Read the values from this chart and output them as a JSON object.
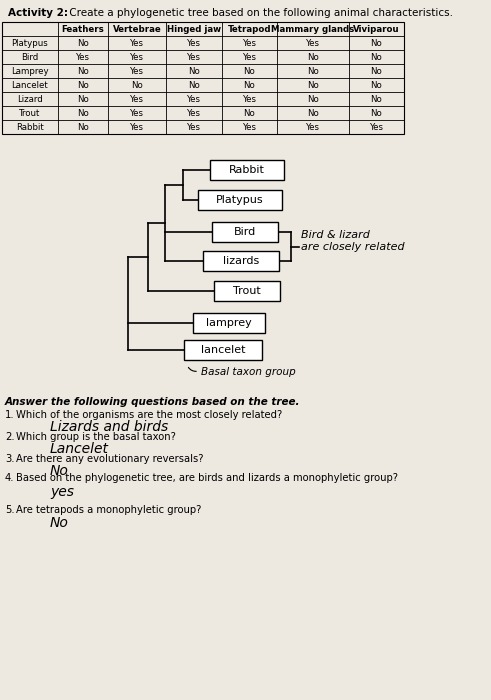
{
  "title_bold": "Activity 2:",
  "title_normal": " Create a phylogenetic tree based on the following animal characteristics.",
  "table_headers": [
    "",
    "Feathers",
    "Vertebrae",
    "Hinged jaw",
    "Tetrapod",
    "Mammary glands",
    "Viviparou"
  ],
  "table_rows": [
    [
      "Platypus",
      "No",
      "Yes",
      "Yes",
      "Yes",
      "Yes",
      "No"
    ],
    [
      "Bird",
      "Yes",
      "Yes",
      "Yes",
      "Yes",
      "No",
      "No"
    ],
    [
      "Lamprey",
      "No",
      "Yes",
      "No",
      "No",
      "No",
      "No"
    ],
    [
      "Lancelet",
      "No",
      "No",
      "No",
      "No",
      "No",
      "No"
    ],
    [
      "Lizard",
      "No",
      "Yes",
      "Yes",
      "Yes",
      "No",
      "No"
    ],
    [
      "Trout",
      "No",
      "Yes",
      "Yes",
      "No",
      "No",
      "No"
    ],
    [
      "Rabbit",
      "No",
      "Yes",
      "Yes",
      "Yes",
      "Yes",
      "Yes"
    ]
  ],
  "tree_labels": [
    "Rabbit",
    "Platypus",
    "Bird",
    "lizards",
    "Trout",
    "lamprey",
    "lancelet"
  ],
  "annotation_text": "Bird & lizard\nare closely related",
  "basal_text": "Basal taxon group",
  "questions_header": "Answer the following questions based on the tree.",
  "questions": [
    "Which of the organisms are the most closely related?",
    "Which group is the basal taxon?",
    "Are there any evolutionary reversals?",
    "Based on the phylogenetic tree, are birds and lizards a monophyletic group?",
    "Are tetrapods a monophyletic group?"
  ],
  "q_numbers": [
    "1.",
    "2.",
    "3.",
    "4.",
    "5."
  ],
  "answers": [
    "Lizards and birds",
    "Lancelet",
    "No",
    "yes",
    "No"
  ],
  "bg_color": "#ede8e0"
}
